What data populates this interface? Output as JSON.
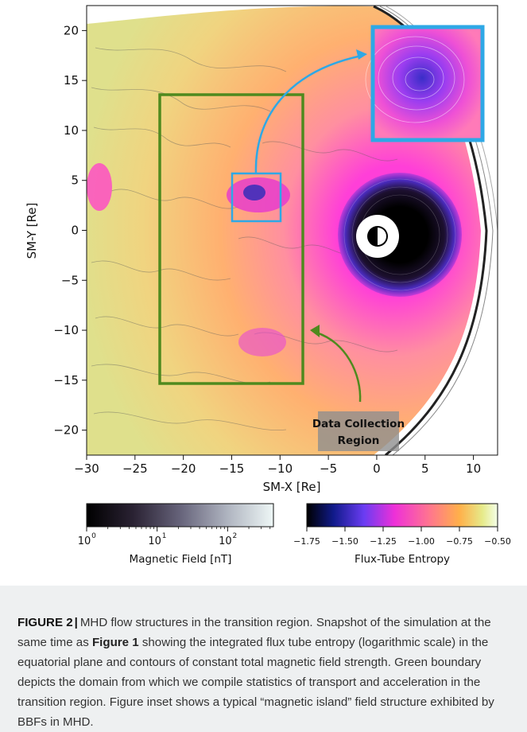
{
  "figure": {
    "x_axis": {
      "label": "SM-X [Re]",
      "ticks": [
        "−30",
        "−25",
        "−20",
        "−15",
        "−10",
        "−5",
        "0",
        "5",
        "10"
      ],
      "range": [
        -30,
        12.5
      ]
    },
    "y_axis": {
      "label": "SM-Y [Re]",
      "ticks": [
        "20",
        "15",
        "10",
        "5",
        "0",
        "−5",
        "−10",
        "−15",
        "−20"
      ],
      "range": [
        -22.5,
        22.5
      ]
    },
    "annotation": {
      "line1": "Data Collection",
      "line2": "Region"
    },
    "region_color": "#4f8a1e",
    "inset_color": "#2ea8e6",
    "colorbar_left": {
      "label": "Magnetic Field [nT]",
      "ticks": [
        "10",
        "10",
        "10"
      ],
      "exponents": [
        "0",
        "1",
        "2"
      ],
      "scale": "log"
    },
    "colorbar_right": {
      "label": "Flux-Tube Entropy",
      "ticks": [
        "−1.75",
        "−1.50",
        "−1.25",
        "−1.00",
        "−0.75",
        "−0.50"
      ],
      "range": [
        -1.75,
        -0.5
      ]
    }
  },
  "caption": {
    "label": "FIGURE 2",
    "text_1": "MHD flow structures in the transition region. Snapshot of the simulation at the same time as ",
    "ref": "Figure 1",
    "text_2": " showing the integrated flux tube entropy (logarithmic scale) in the equatorial plane and contours of constant total magnetic field strength. Green boundary depicts the domain from which we compile statistics of transport and acceleration in the transition region. Figure inset shows a typical “magnetic island” field structure exhibited by BBFs in MHD."
  }
}
